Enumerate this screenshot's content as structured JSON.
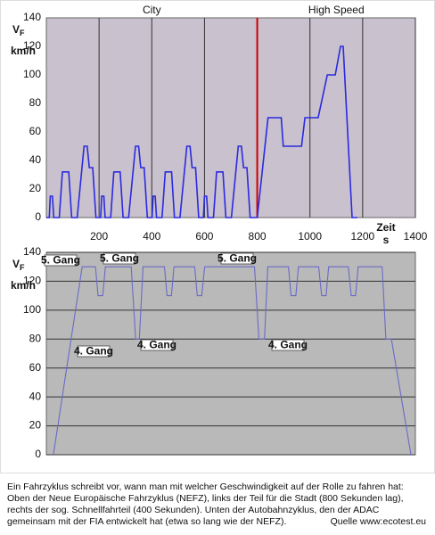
{
  "chart_data": [
    {
      "type": "line",
      "sections": [
        "City",
        "High Speed"
      ],
      "divider": {
        "x": 800,
        "color": "#cc0000"
      },
      "y_label": "V",
      "y_label_sub": "F",
      "y_unit": "km/h",
      "x_label": "Zeit",
      "x_unit": "s",
      "background": "#c9c1cd",
      "color": "#2a2ae0",
      "grid": "x",
      "xlim": [
        0,
        1400
      ],
      "xticks": [
        200,
        400,
        600,
        800,
        1000,
        1200,
        1400
      ],
      "ylim": [
        0,
        140
      ],
      "yticks": [
        0,
        20,
        40,
        60,
        80,
        100,
        120,
        140
      ],
      "x": [
        0,
        11,
        15,
        23,
        28,
        49,
        61,
        85,
        96,
        117,
        143,
        155,
        163,
        176,
        188,
        206,
        210,
        218,
        223,
        244,
        256,
        280,
        291,
        312,
        338,
        350,
        358,
        371,
        383,
        401,
        405,
        413,
        418,
        439,
        451,
        475,
        486,
        507,
        533,
        545,
        553,
        566,
        578,
        596,
        600,
        608,
        613,
        634,
        646,
        670,
        681,
        702,
        728,
        740,
        748,
        761,
        773,
        800,
        841,
        891,
        899,
        968,
        981,
        1031,
        1066,
        1096,
        1116,
        1126,
        1160,
        1180
      ],
      "values": [
        0,
        0,
        15,
        15,
        0,
        0,
        32,
        32,
        0,
        0,
        50,
        50,
        35,
        35,
        0,
        0,
        15,
        15,
        0,
        0,
        32,
        32,
        0,
        0,
        50,
        50,
        35,
        35,
        0,
        0,
        15,
        15,
        0,
        0,
        32,
        32,
        0,
        0,
        50,
        50,
        35,
        35,
        0,
        0,
        15,
        15,
        0,
        0,
        32,
        32,
        0,
        0,
        50,
        50,
        35,
        35,
        0,
        0,
        70,
        70,
        50,
        50,
        70,
        70,
        100,
        100,
        120,
        120,
        0,
        0
      ]
    },
    {
      "type": "line",
      "y_label": "V",
      "y_label_sub": "F",
      "y_unit": "km/h",
      "background": "#b9b9b9",
      "color": "#6a6ac8",
      "grid": "y",
      "xlim": [
        0,
        100
      ],
      "ylim": [
        0,
        140
      ],
      "yticks": [
        0,
        20,
        40,
        60,
        80,
        100,
        120,
        140
      ],
      "annotations": [
        "5. Gang",
        "5. Gang",
        "5. Gang",
        "4. Gang",
        "4. Gang",
        "4. Gang"
      ],
      "x": [
        1.9,
        9.7,
        13.3,
        14.0,
        15.3,
        16.0,
        23.0,
        24.2,
        25.2,
        26.2,
        32.0,
        32.7,
        33.9,
        34.6,
        40.2,
        40.9,
        42.1,
        42.9,
        48.4,
        56.4,
        57.6,
        59.1,
        60.0,
        65.6,
        66.3,
        67.6,
        68.3,
        73.8,
        74.6,
        75.8,
        76.5,
        81.8,
        82.6,
        83.8,
        84.5,
        91.0,
        92.0,
        93.5,
        98.8
      ],
      "values": [
        0,
        130,
        130,
        110,
        110,
        130,
        130,
        80,
        80,
        130,
        130,
        110,
        110,
        130,
        130,
        110,
        110,
        130,
        130,
        130,
        80,
        80,
        130,
        130,
        110,
        110,
        130,
        130,
        110,
        110,
        130,
        130,
        110,
        110,
        130,
        130,
        80,
        80,
        0
      ]
    }
  ],
  "caption": [
    "Ein Fahrzyklus schreibt vor, wann man mit welcher Geschwindigkeit auf der Rolle zu fahren hat:",
    "Oben der Neue Europäische Fahrzyklus (NEFZ), links der Teil für die Stadt (800 Sekunden lag),",
    "rechts der sog. Schnellfahrteil (400 Sekunden). Unten der Autobahnzyklus, den der ADAC",
    "gemeinsam mit der FIA entwickelt hat (etwa so lang wie der NEFZ)."
  ],
  "source": "Quelle www:ecotest.eu"
}
